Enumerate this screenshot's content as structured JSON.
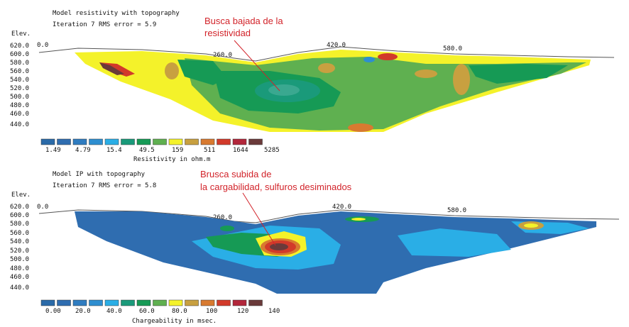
{
  "colors": {
    "scale": [
      "#2a6aa8",
      "#2f6db0",
      "#2f7cc0",
      "#2e8ed0",
      "#2aaee6",
      "#1a9a7a",
      "#169a55",
      "#5fb050",
      "#f4f22a",
      "#c8a040",
      "#d87a30",
      "#d23a2a",
      "#b2263a",
      "#6a3a3a"
    ],
    "annotation": "#d2232a",
    "topo": "#555555"
  },
  "resistivity": {
    "title": "Model resistivity with topography",
    "subtitle": "Iteration 7 RMS error = 5.9",
    "elev_label": "Elev.",
    "y_ticks": [
      "620.0",
      "600.0",
      "580.0",
      "560.0",
      "540.0",
      "520.0",
      "500.0",
      "480.0",
      "460.0",
      "440.0"
    ],
    "x_ticks": [
      "0.0",
      "260.0",
      "420.0",
      "580.0"
    ],
    "legend_values": [
      "1.49",
      "4.79",
      "15.4",
      "49.5",
      "159",
      "511",
      "1644",
      "5285"
    ],
    "legend_caption": "Resistivity in ohm.m",
    "annotation": "Busca bajada de la\nresistividad"
  },
  "chargeability": {
    "title": "Model IP with topography",
    "subtitle": "Iteration 7 RMS error = 5.8",
    "elev_label": "Elev.",
    "y_ticks": [
      "620.0",
      "600.0",
      "580.0",
      "560.0",
      "540.0",
      "520.0",
      "500.0",
      "480.0",
      "460.0",
      "440.0"
    ],
    "x_ticks": [
      "0.0",
      "260.0",
      "420.0",
      "580.0"
    ],
    "legend_values": [
      "0.00",
      "20.0",
      "40.0",
      "60.0",
      "80.0",
      "100",
      "120",
      "140"
    ],
    "legend_caption": "Chargeability in msec.",
    "annotation": "Brusca subida de\nla cargabilidad, sulfuros desiminados"
  }
}
